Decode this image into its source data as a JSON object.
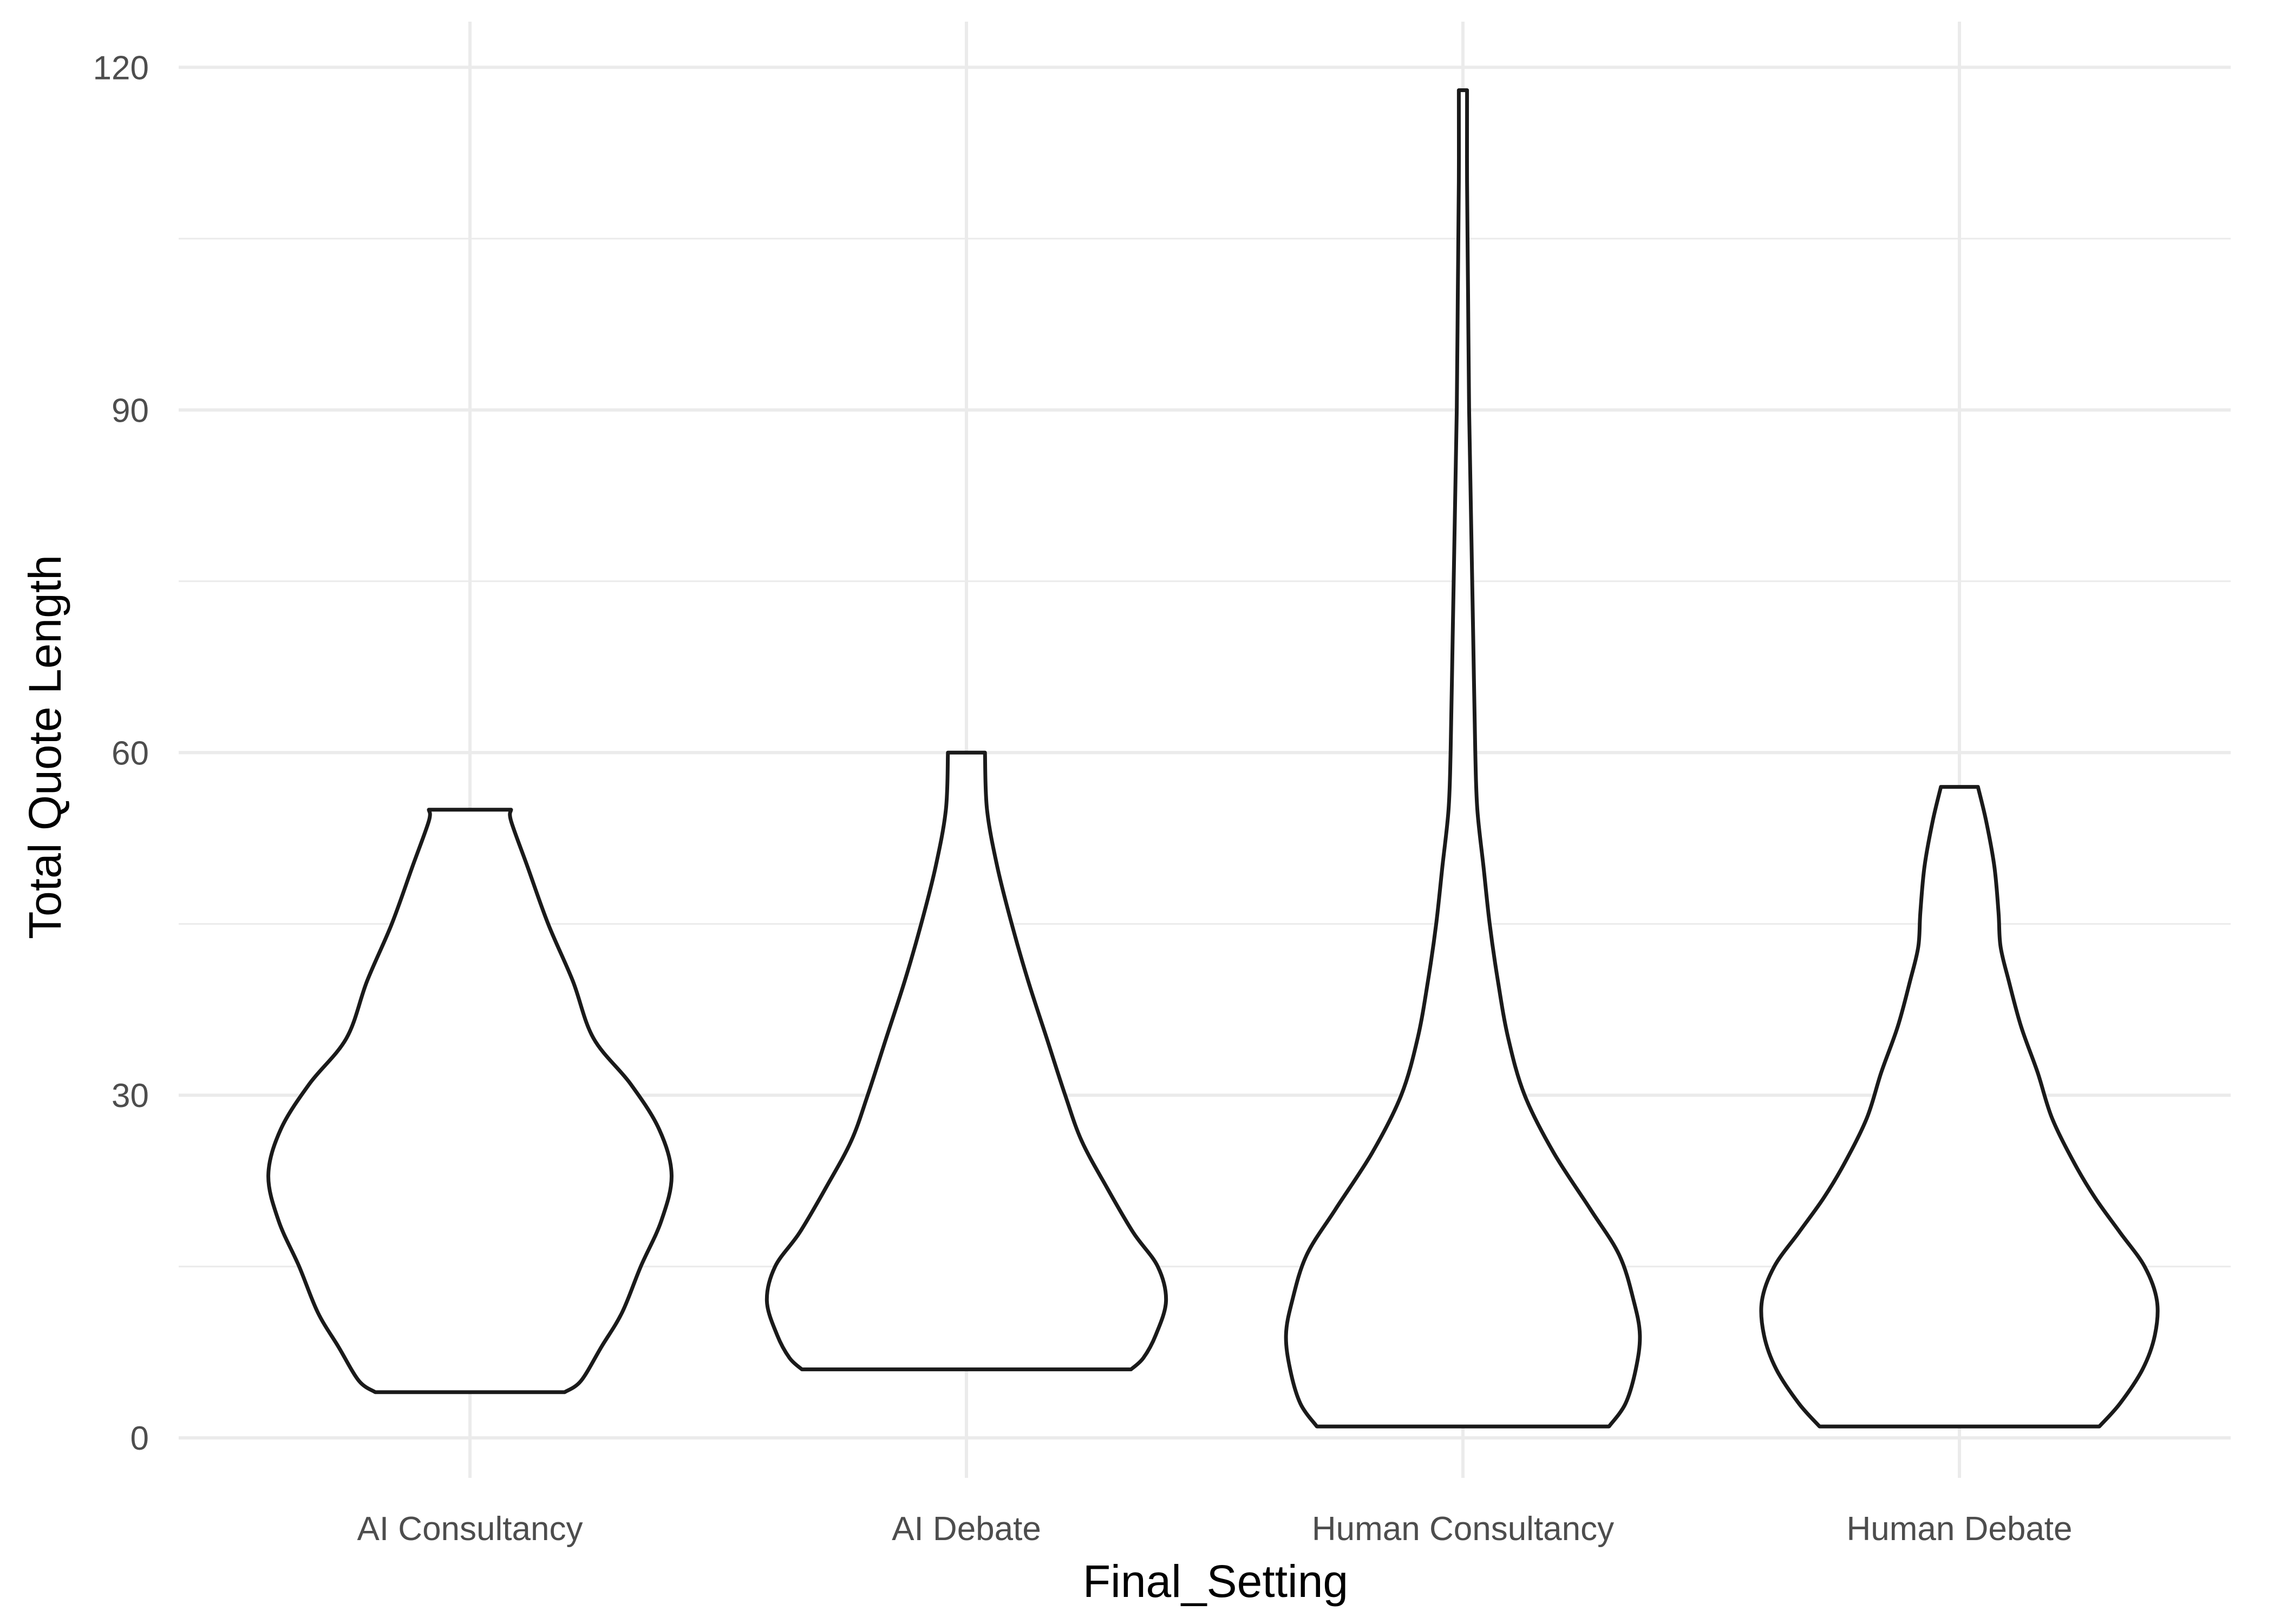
{
  "chart_data": {
    "type": "violin",
    "xlabel": "Final_Setting",
    "ylabel": "Total Quote Length",
    "ylim": [
      -3.5,
      124
    ],
    "y_ticks": [
      0,
      30,
      60,
      90,
      120
    ],
    "y_minor_ticks": [
      15,
      45,
      75,
      105
    ],
    "categories": [
      "AI Consultancy",
      "AI Debate",
      "Human Consultancy",
      "Human Debate"
    ],
    "grid": true,
    "series": [
      {
        "category": "AI Consultancy",
        "min": 4,
        "max": 55,
        "profile": [
          [
            4,
            0.46
          ],
          [
            5,
            0.54
          ],
          [
            8,
            0.64
          ],
          [
            11,
            0.74
          ],
          [
            15,
            0.83
          ],
          [
            19,
            0.93
          ],
          [
            23,
            0.98
          ],
          [
            27,
            0.92
          ],
          [
            31,
            0.78
          ],
          [
            35,
            0.6
          ],
          [
            40,
            0.5
          ],
          [
            45,
            0.38
          ],
          [
            50,
            0.28
          ],
          [
            54,
            0.2
          ],
          [
            55,
            0.2
          ]
        ]
      },
      {
        "category": "AI Debate",
        "min": 6,
        "max": 60,
        "profile": [
          [
            6,
            0.8
          ],
          [
            7,
            0.86
          ],
          [
            9,
            0.92
          ],
          [
            12,
            0.97
          ],
          [
            15,
            0.93
          ],
          [
            18,
            0.81
          ],
          [
            22,
            0.68
          ],
          [
            26,
            0.56
          ],
          [
            30,
            0.48
          ],
          [
            35,
            0.39
          ],
          [
            40,
            0.3
          ],
          [
            45,
            0.22
          ],
          [
            50,
            0.15
          ],
          [
            55,
            0.1
          ],
          [
            60,
            0.09
          ]
        ]
      },
      {
        "category": "Human Consultancy",
        "min": 1,
        "max": 118,
        "profile": [
          [
            1,
            0.71
          ],
          [
            3,
            0.79
          ],
          [
            6,
            0.84
          ],
          [
            9,
            0.86
          ],
          [
            12,
            0.83
          ],
          [
            16,
            0.76
          ],
          [
            20,
            0.62
          ],
          [
            25,
            0.44
          ],
          [
            30,
            0.3
          ],
          [
            35,
            0.22
          ],
          [
            40,
            0.17
          ],
          [
            45,
            0.13
          ],
          [
            50,
            0.1
          ],
          [
            55,
            0.07
          ],
          [
            60,
            0.06
          ],
          [
            70,
            0.05
          ],
          [
            80,
            0.04
          ],
          [
            90,
            0.03
          ],
          [
            100,
            0.025
          ],
          [
            110,
            0.02
          ],
          [
            118,
            0.02
          ]
        ]
      },
      {
        "category": "Human Debate",
        "min": 1,
        "max": 57,
        "profile": [
          [
            1,
            0.68
          ],
          [
            3,
            0.78
          ],
          [
            6,
            0.89
          ],
          [
            9,
            0.95
          ],
          [
            12,
            0.96
          ],
          [
            15,
            0.9
          ],
          [
            18,
            0.78
          ],
          [
            21,
            0.66
          ],
          [
            24,
            0.56
          ],
          [
            28,
            0.45
          ],
          [
            32,
            0.38
          ],
          [
            36,
            0.3
          ],
          [
            40,
            0.24
          ],
          [
            43,
            0.2
          ],
          [
            46,
            0.19
          ],
          [
            50,
            0.17
          ],
          [
            54,
            0.13
          ],
          [
            57,
            0.09
          ]
        ]
      }
    ]
  }
}
